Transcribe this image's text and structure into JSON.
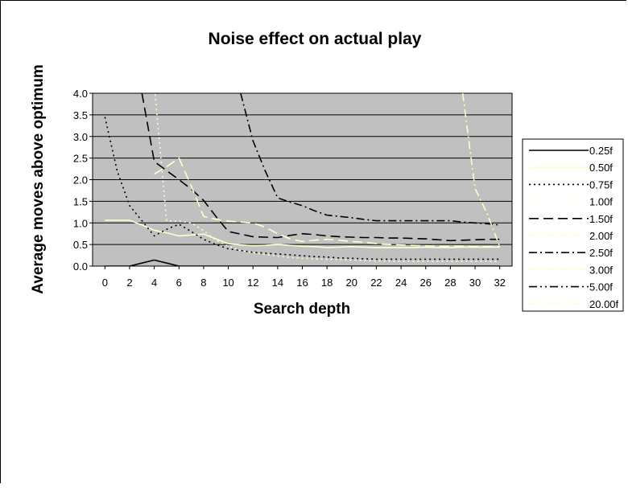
{
  "chart_data": {
    "type": "line",
    "title": "Noise effect on actual play",
    "xlabel": "Search depth",
    "ylabel": "Average moves above optimum",
    "x": [
      0,
      1,
      2,
      3,
      4,
      5,
      6,
      7,
      8,
      9,
      10,
      11,
      12,
      13,
      14,
      15,
      16,
      17,
      18,
      19,
      20,
      21,
      22,
      23,
      24,
      25,
      26,
      27,
      28,
      29,
      30,
      31,
      32
    ],
    "xticks": [
      "0",
      "2",
      "4",
      "6",
      "8",
      "10",
      "12",
      "14",
      "16",
      "18",
      "20",
      "22",
      "24",
      "26",
      "28",
      "30",
      "32"
    ],
    "yticks": [
      "0.0",
      "0.5",
      "1.0",
      "1.5",
      "2.0",
      "2.5",
      "3.0",
      "3.5",
      "4.0"
    ],
    "xlim": [
      -1,
      33
    ],
    "ylim": [
      0,
      4
    ],
    "grid": true,
    "legend_position": "right",
    "plot_background": "#c0c0c0",
    "series": [
      {
        "name": "0.25f",
        "color": "#000000",
        "dash": "solid",
        "values": [
          0,
          0,
          0,
          0.07,
          0.14,
          0.07,
          0,
          0,
          0,
          0,
          0,
          0,
          0,
          0,
          0,
          0,
          0,
          0,
          0,
          0,
          0,
          0,
          0,
          0,
          0,
          0,
          0,
          0,
          0,
          0,
          0,
          0,
          0
        ]
      },
      {
        "name": "0.50f",
        "color": "#ffffcc",
        "dash": "solid",
        "values": [
          1.06,
          1.06,
          1.06,
          0.95,
          0.83,
          0.77,
          0.7,
          0.72,
          0.74,
          0.63,
          0.52,
          0.49,
          0.47,
          0.48,
          0.5,
          0.48,
          0.46,
          0.45,
          0.43,
          0.44,
          0.45,
          0.44,
          0.43,
          0.43,
          0.43,
          0.43,
          0.44,
          0.43,
          0.43,
          0.44,
          0.44,
          0.44,
          0.44
        ]
      },
      {
        "name": "0.75f",
        "color": "#000000",
        "dash": "dot",
        "values": [
          3.45,
          2.2,
          1.4,
          1.05,
          0.7,
          0.85,
          0.97,
          0.8,
          0.62,
          0.5,
          0.4,
          0.36,
          0.32,
          0.3,
          0.28,
          0.26,
          0.24,
          0.22,
          0.21,
          0.19,
          0.18,
          0.17,
          0.16,
          0.16,
          0.16,
          0.16,
          0.16,
          0.16,
          0.16,
          0.16,
          0.16,
          0.16,
          0.16
        ]
      },
      {
        "name": "1.00f",
        "color": "#ffffcc",
        "dash": "dot",
        "values": [
          null,
          null,
          null,
          null,
          4.2,
          1.05,
          1.04,
          1.0,
          0.82,
          0.6,
          0.46,
          0.36,
          0.31,
          0.27,
          0.23,
          0.2,
          0.18,
          0.17,
          0.16,
          0.15,
          0.14,
          0.13,
          0.12,
          0.12,
          0.11,
          0.11,
          0.11,
          0.11,
          0.11,
          0.11,
          0.11,
          0.11,
          0.11
        ]
      },
      {
        "name": "1.50f",
        "color": "#000000",
        "dash": "longdash",
        "values": [
          null,
          null,
          null,
          4.0,
          2.42,
          2.21,
          2.0,
          1.78,
          1.52,
          1.15,
          0.8,
          0.74,
          0.68,
          0.67,
          0.66,
          0.71,
          0.75,
          0.73,
          0.7,
          0.68,
          0.67,
          0.66,
          0.66,
          0.65,
          0.65,
          0.64,
          0.63,
          0.61,
          0.59,
          0.6,
          0.61,
          0.62,
          0.62
        ]
      },
      {
        "name": "2.00f",
        "color": "#ffffcc",
        "dash": "longdash",
        "values": [
          null,
          null,
          null,
          null,
          2.13,
          2.3,
          2.5,
          1.85,
          1.15,
          1.08,
          1.04,
          1.02,
          1.0,
          0.9,
          0.75,
          0.63,
          0.57,
          0.6,
          0.62,
          0.6,
          0.57,
          0.55,
          0.52,
          0.5,
          0.49,
          0.48,
          0.47,
          0.46,
          0.46,
          0.46,
          0.45,
          0.45,
          0.45
        ]
      },
      {
        "name": "2.50f",
        "color": "#000000",
        "dash": "dashdot",
        "values": [
          null,
          null,
          null,
          null,
          null,
          null,
          null,
          null,
          null,
          null,
          null,
          4.0,
          2.9,
          2.2,
          1.58,
          1.48,
          1.4,
          1.28,
          1.18,
          1.15,
          1.12,
          1.08,
          1.05,
          1.05,
          1.05,
          1.05,
          1.05,
          1.05,
          1.05,
          1.02,
          1.0,
          0.98,
          0.95
        ]
      },
      {
        "name": "3.00f",
        "color": "#ffffcc",
        "dash": "dashdot",
        "values": [
          null,
          null,
          null,
          null,
          null,
          null,
          null,
          null,
          null,
          null,
          null,
          null,
          null,
          null,
          null,
          null,
          null,
          null,
          null,
          null,
          null,
          null,
          null,
          null,
          null,
          null,
          null,
          null,
          null,
          4.0,
          1.8,
          1.2,
          0.45
        ]
      },
      {
        "name": "5.00f",
        "color": "#000000",
        "dash": "dashdotdot",
        "values": [
          null,
          null,
          null,
          null,
          null,
          null,
          null,
          null,
          null,
          null,
          null,
          null,
          null,
          null,
          null,
          null,
          null,
          null,
          null,
          null,
          null,
          null,
          null,
          null,
          null,
          null,
          null,
          null,
          null,
          null,
          null,
          null,
          null
        ]
      },
      {
        "name": "20.00f",
        "color": "#ffffcc",
        "dash": "dashdotdot",
        "values": [
          null,
          null,
          null,
          null,
          null,
          null,
          null,
          null,
          null,
          null,
          null,
          null,
          null,
          null,
          null,
          null,
          null,
          null,
          null,
          null,
          null,
          null,
          null,
          null,
          null,
          null,
          null,
          null,
          null,
          null,
          null,
          null,
          null
        ]
      }
    ]
  }
}
